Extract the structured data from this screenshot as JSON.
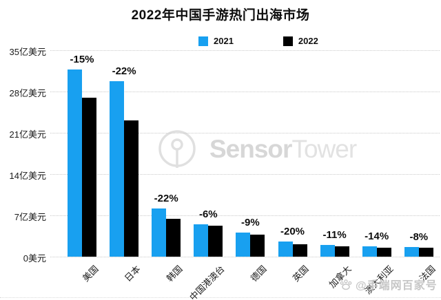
{
  "title": "2022年中国手游热门出海市场",
  "legend": [
    {
      "label": "2021",
      "color": "#18a0f0"
    },
    {
      "label": "2022",
      "color": "#000000"
    }
  ],
  "watermark": {
    "icon": "sensortower-logo-icon",
    "brand_part1": "Sensor",
    "brand_part2": "Tower"
  },
  "credit": {
    "icon": "baijiahao-paw-icon",
    "text": "@手端网百家号"
  },
  "chart_data": {
    "type": "bar",
    "title": "2022年中国手游热门出海市场",
    "categories": [
      "美国",
      "日本",
      "韩国",
      "中国港澳台",
      "德国",
      "英国",
      "加拿大",
      "澳大利亚",
      "法国"
    ],
    "series": [
      {
        "name": "2021",
        "color": "#18a0f0",
        "values": [
          31.7,
          29.7,
          8.2,
          5.5,
          4.1,
          2.6,
          2.0,
          1.8,
          1.6
        ]
      },
      {
        "name": "2022",
        "color": "#000000",
        "values": [
          26.9,
          23.1,
          6.4,
          5.2,
          3.7,
          2.1,
          1.8,
          1.55,
          1.47
        ]
      }
    ],
    "pct_change": [
      "-15%",
      "-22%",
      "-22%",
      "-6%",
      "-9%",
      "-20%",
      "-11%",
      "-14%",
      "-8%"
    ],
    "unit": "亿美元",
    "ylabel": "",
    "xlabel": "",
    "yticks": [
      "35亿美元",
      "28亿美元",
      "21亿美元",
      "14亿美元",
      "7亿美元",
      "0美元"
    ],
    "ylim": [
      0,
      35
    ],
    "grid": "dotted horizontal",
    "legend_position": "top-center",
    "bar_label_position": "above-group"
  }
}
